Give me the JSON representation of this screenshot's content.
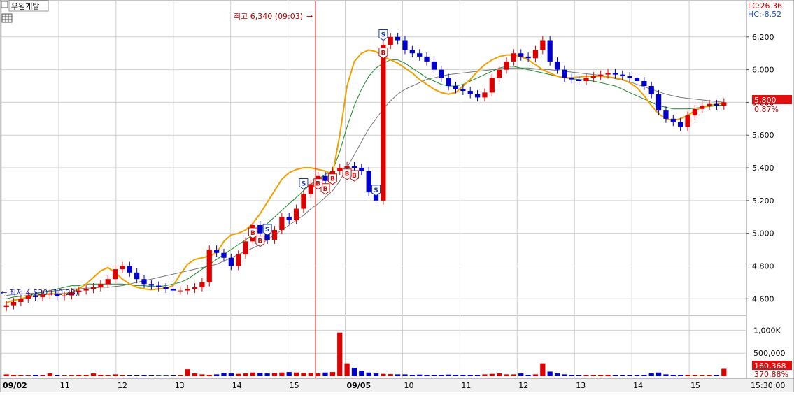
{
  "stock_name": "우원개발",
  "indicators": {
    "lc": "LC:26.36",
    "hc": "HC:-8.52"
  },
  "annotations": {
    "high": "최고 6,340 (09:03)",
    "low": "최저 4,530 (10:28)"
  },
  "current": {
    "price": "5,800",
    "change": "0.87%",
    "volume": "160,368",
    "volume_ratio": "370.88%"
  },
  "time_label": "15:30:00",
  "chart_data": {
    "type": "candlestick",
    "price_axis": {
      "ticks": [
        "4,600",
        "4,800",
        "5,000",
        "5,200",
        "5,400",
        "5,600",
        "5,800",
        "6,000",
        "6,200"
      ],
      "range": [
        4520,
        6400
      ]
    },
    "volume_axis": {
      "ticks": [
        "500,000",
        "1,000K"
      ],
      "range": [
        0,
        1250000
      ]
    },
    "x_ticks": [
      "09/02",
      "11",
      "12",
      "13",
      "14",
      "15",
      "09/05",
      "10",
      "11",
      "12",
      "13",
      "14",
      "15"
    ],
    "close": [
      4560,
      4580,
      4600,
      4620,
      4610,
      4625,
      4630,
      4615,
      4620,
      4640,
      4650,
      4660,
      4670,
      4690,
      4720,
      4780,
      4800,
      4760,
      4720,
      4690,
      4680,
      4670,
      4660,
      4650,
      4650,
      4660,
      4670,
      4700,
      4900,
      4880,
      4850,
      4800,
      4870,
      4950,
      5050,
      5000,
      4960,
      5020,
      5100,
      5080,
      5150,
      5240,
      5300,
      5350,
      5320,
      5380,
      5400,
      5410,
      5400,
      5380,
      5250,
      5200,
      6150,
      6200,
      6180,
      6120,
      6100,
      6080,
      6050,
      6000,
      5950,
      5900,
      5880,
      5870,
      5850,
      5830,
      5860,
      5950,
      6000,
      6050,
      6100,
      6080,
      6070,
      6120,
      6180,
      6050,
      6000,
      5950,
      5940,
      5930,
      5950,
      5960,
      5970,
      5980,
      5970,
      5960,
      5950,
      5930,
      5900,
      5850,
      5750,
      5700,
      5680,
      5650,
      5720,
      5760,
      5780,
      5790,
      5780,
      5800
    ],
    "ma_short": [
      4575,
      4590,
      4600,
      4610,
      4620,
      4625,
      4630,
      4630,
      4630,
      4640,
      4660,
      4690,
      4730,
      4770,
      4790,
      4760,
      4720,
      4690,
      4670,
      4660,
      4655,
      4660,
      4665,
      4680,
      4750,
      4810,
      4840,
      4850,
      4860,
      4880,
      4950,
      4990,
      5000,
      5020,
      5060,
      5120,
      5190,
      5260,
      5330,
      5370,
      5390,
      5400,
      5400,
      5390,
      5380,
      5360,
      5600,
      5900,
      6050,
      6100,
      6120,
      6110,
      6080,
      6060,
      6040,
      6010,
      5980,
      5940,
      5910,
      5880,
      5860,
      5850,
      5860,
      5900,
      5940,
      5990,
      6030,
      6060,
      6080,
      6090,
      6090,
      6080,
      6060,
      6030,
      6000,
      5980,
      5960,
      5950,
      5950,
      5955,
      5960,
      5960,
      5960,
      5955,
      5950,
      5940,
      5920,
      5890,
      5840,
      5780,
      5730,
      5700,
      5690,
      5700,
      5720,
      5750,
      5770,
      5780,
      5790,
      5795
    ],
    "ma_mid": [
      4600,
      4610,
      4615,
      4620,
      4630,
      4640,
      4650,
      4660,
      4670,
      4680,
      4680,
      4690,
      4690,
      4690,
      4690,
      4690,
      4690,
      4685,
      4680,
      4680,
      4675,
      4675,
      4680,
      4690,
      4700,
      4720,
      4750,
      4780,
      4810,
      4840,
      4870,
      4900,
      4930,
      4960,
      4990,
      5020,
      5060,
      5100,
      5140,
      5180,
      5220,
      5260,
      5300,
      5330,
      5360,
      5380,
      5500,
      5650,
      5780,
      5880,
      5960,
      6010,
      6040,
      6060,
      6060,
      6040,
      6010,
      5980,
      5950,
      5930,
      5910,
      5900,
      5900,
      5910,
      5930,
      5950,
      5970,
      5990,
      6010,
      6020,
      6020,
      6010,
      6000,
      5990,
      5980,
      5970,
      5960,
      5950,
      5945,
      5940,
      5935,
      5930,
      5920,
      5910,
      5900,
      5880,
      5860,
      5840,
      5820,
      5800,
      5780,
      5770,
      5760,
      5760,
      5760,
      5765,
      5770,
      5775,
      5780,
      5785
    ],
    "ma_long": [
      4620,
      4625,
      4630,
      4630,
      4635,
      4640,
      4645,
      4650,
      4655,
      4660,
      4660,
      4665,
      4665,
      4670,
      4670,
      4675,
      4680,
      4690,
      4700,
      4710,
      4720,
      4730,
      4740,
      4750,
      4760,
      4770,
      4780,
      4790,
      4800,
      4810,
      4830,
      4850,
      4870,
      4890,
      4910,
      4930,
      4960,
      4990,
      5020,
      5050,
      5080,
      5110,
      5150,
      5180,
      5220,
      5260,
      5320,
      5400,
      5480,
      5560,
      5640,
      5700,
      5760,
      5810,
      5850,
      5880,
      5900,
      5920,
      5940,
      5950,
      5960,
      5970,
      5975,
      5980,
      5985,
      5990,
      5995,
      6000,
      6005,
      6010,
      6010,
      6010,
      6010,
      6005,
      6000,
      6000,
      5995,
      5990,
      5985,
      5980,
      5975,
      5970,
      5965,
      5955,
      5945,
      5935,
      5925,
      5910,
      5895,
      5880,
      5865,
      5850,
      5840,
      5830,
      5825,
      5820,
      5815,
      5810,
      5805,
      5800
    ],
    "volume": [
      40000,
      30000,
      20000,
      15000,
      30000,
      20000,
      60000,
      20000,
      15000,
      20000,
      30000,
      25000,
      60000,
      30000,
      20000,
      40000,
      20000,
      15000,
      15000,
      20000,
      15000,
      12000,
      12000,
      15000,
      20000,
      150000,
      60000,
      40000,
      30000,
      40000,
      70000,
      60000,
      50000,
      60000,
      80000,
      70000,
      60000,
      70000,
      80000,
      90000,
      80000,
      70000,
      70000,
      60000,
      80000,
      90000,
      950000,
      280000,
      180000,
      120000,
      80000,
      60000,
      50000,
      45000,
      40000,
      40000,
      30000,
      35000,
      30000,
      25000,
      30000,
      35000,
      30000,
      30000,
      30000,
      25000,
      40000,
      50000,
      60000,
      40000,
      40000,
      60000,
      30000,
      40000,
      280000,
      100000,
      60000,
      40000,
      30000,
      20000,
      20000,
      20000,
      25000,
      30000,
      20000,
      20000,
      20000,
      25000,
      30000,
      60000,
      80000,
      40000,
      30000,
      30000,
      30000,
      25000,
      20000,
      20000,
      20000,
      160368
    ],
    "signals": [
      {
        "type": "S",
        "i": 51
      },
      {
        "type": "S",
        "i": 52
      },
      {
        "type": "S",
        "i": 41
      },
      {
        "type": "S",
        "i": 36
      },
      {
        "type": "B",
        "i": 45
      },
      {
        "type": "B",
        "i": 48
      },
      {
        "type": "B",
        "i": 47
      },
      {
        "type": "B",
        "i": 52
      },
      {
        "type": "B",
        "i": 35
      },
      {
        "type": "B",
        "i": 34
      },
      {
        "type": "B",
        "i": 44
      },
      {
        "type": "B",
        "i": 43
      }
    ],
    "colors": {
      "up": "#dd0000",
      "down": "#0000cc",
      "ma_short": "#f0a000",
      "ma_mid": "#1c8a2a",
      "ma_long": "#777777",
      "grid": "#d0d0d0",
      "accent": "#e01010"
    }
  }
}
